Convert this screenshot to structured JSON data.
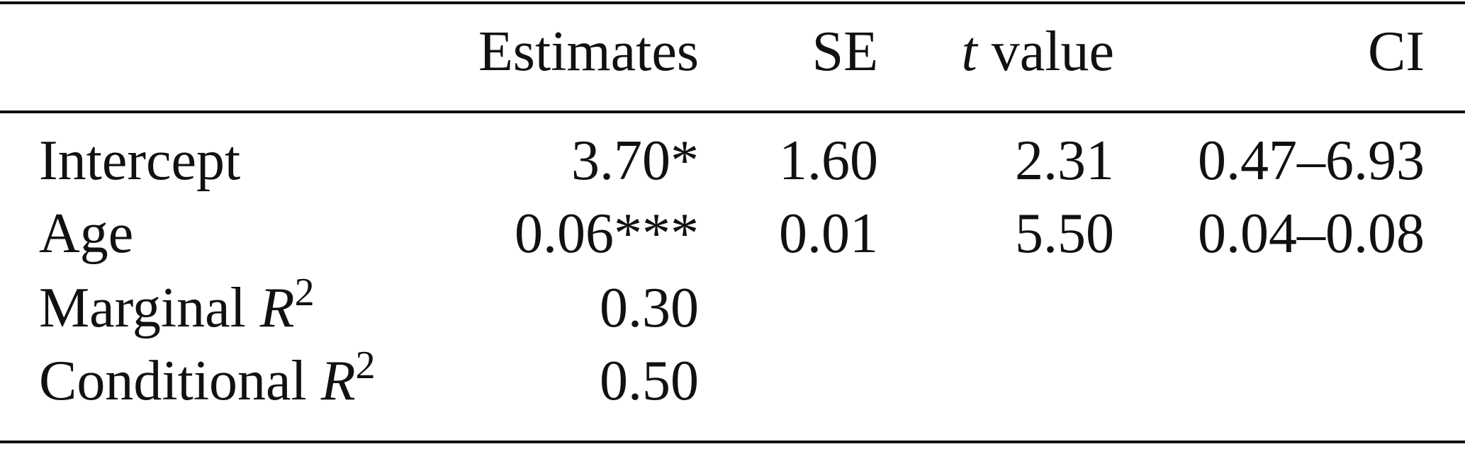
{
  "table": {
    "header": [
      {
        "text": "Estimates"
      },
      {
        "text": "SE"
      },
      {
        "italic": "t",
        "text": " value"
      },
      {
        "text": "CI"
      }
    ],
    "rows": [
      {
        "label": {
          "text": "Intercept"
        },
        "cells": [
          "3.70*",
          "1.60",
          "2.31",
          "0.47–6.93"
        ]
      },
      {
        "label": {
          "text": "Age"
        },
        "cells": [
          "0.06***",
          "0.01",
          "5.50",
          "0.04–0.08"
        ]
      },
      {
        "label": {
          "text": "Marginal ",
          "italic": "R",
          "superscript": "2"
        },
        "cells": [
          "0.30"
        ]
      },
      {
        "label": {
          "text": "Conditional ",
          "italic": "R",
          "superscript": "2"
        },
        "cells": [
          "0.50"
        ]
      }
    ]
  }
}
